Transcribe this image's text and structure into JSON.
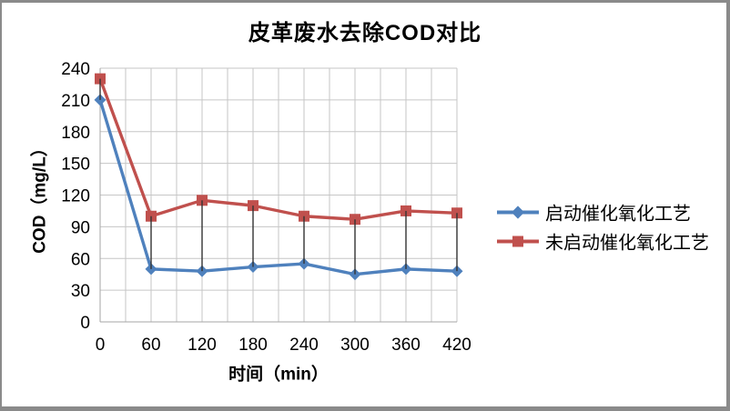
{
  "frame": {
    "border_color": "#8a8a8a",
    "background": "#ffffff"
  },
  "chart_data": {
    "type": "line",
    "title": "皮革废水去除COD对比",
    "xlabel": "时间（min）",
    "ylabel": "COD（mg/L）",
    "x": [
      0,
      60,
      120,
      180,
      240,
      300,
      360,
      420
    ],
    "xlim": [
      0,
      420
    ],
    "ylim": [
      0,
      240
    ],
    "yticks": [
      0,
      30,
      60,
      90,
      120,
      150,
      180,
      210,
      240
    ],
    "x_minor_grid_step": 30,
    "grid": true,
    "high_low_lines": true,
    "legend_position": "right",
    "series": [
      {
        "name": "启动催化氧化工艺",
        "color": "#4f81bd",
        "marker": "diamond",
        "values": [
          210,
          50,
          48,
          52,
          55,
          45,
          50,
          48
        ]
      },
      {
        "name": "未启动催化氧化工艺",
        "color": "#c0504d",
        "marker": "square",
        "values": [
          230,
          100,
          115,
          110,
          100,
          97,
          105,
          103
        ]
      }
    ],
    "colors": {
      "gridline": "#c6c6c6",
      "axis_line": "#a6a6a6",
      "high_low_line": "#333333",
      "text": "#000000"
    }
  }
}
